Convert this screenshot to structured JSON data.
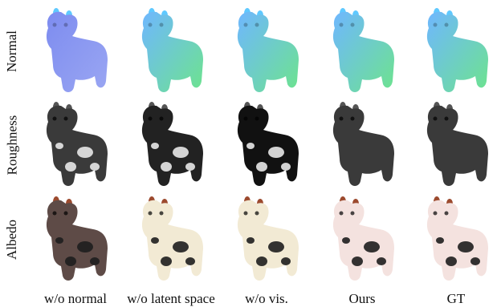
{
  "row_labels": [
    "Normal",
    "Roughness",
    "Albedo"
  ],
  "column_labels": [
    "w/o normal",
    "w/o latent space",
    "w/o vis.",
    "Ours",
    "GT"
  ],
  "colors": {
    "normal_blue": "#7d8cf0",
    "normal_green": "#6de38e",
    "roughness_gray": "#3a3a3a",
    "roughness_black": "#111111",
    "albedo_cream": "#f2ead4",
    "albedo_pink": "#f4e2df",
    "albedo_brown": "#5e4b47",
    "spot_dark": "#1e1e1e",
    "spot_white": "#e8e8e8",
    "horn_brown": "#9c4a2e"
  }
}
